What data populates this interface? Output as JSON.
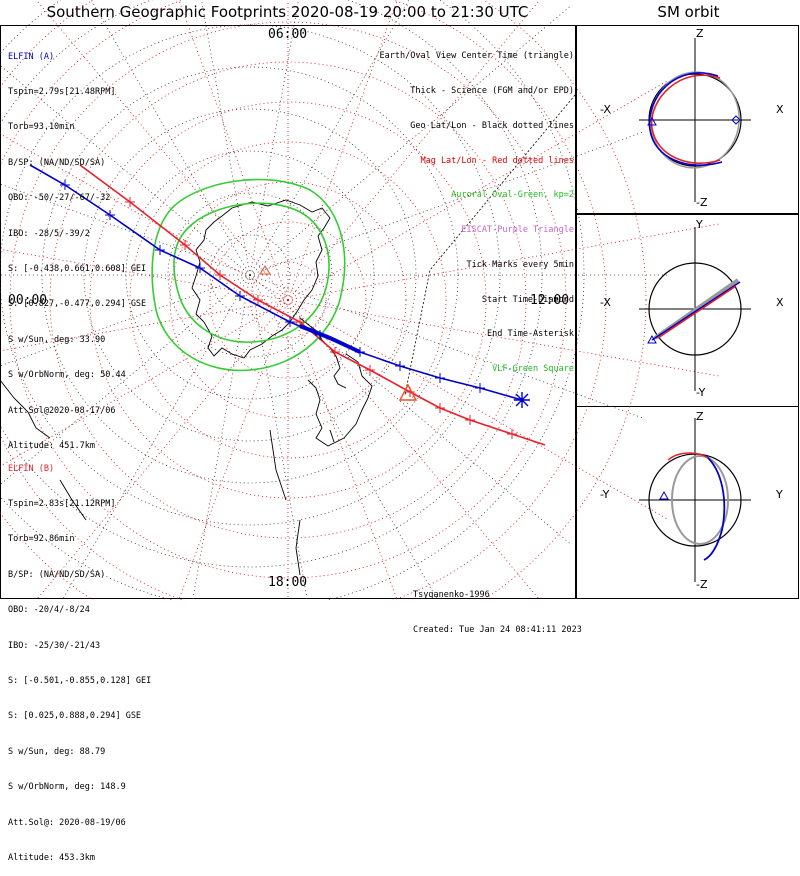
{
  "title": "Southern Geographic Footprints 2020-08-19 20:00 to 21:30 UTC",
  "sm_title": "SM orbit",
  "hour_labels": {
    "top": "06:00",
    "left": "00:00",
    "right": "12:00",
    "bottom": "18:00"
  },
  "elfin_a": {
    "name": "ELFIN (A)",
    "color": "#0000cc",
    "lines": [
      "Tspin=2.79s[21.48RPM]",
      "Torb=93.10min",
      "B/SP: (NA/ND/SD/SA)",
      "OBO: -50/-27/-67/-32",
      "IBO: -28/5/-39/2",
      "S: [-0.438,0.661,0.608] GEI",
      "S: [0.827,-0.477,0.294] GSE",
      "S w/Sun, deg: 33.90",
      "S w/OrbNorm, deg: 50.44",
      "Att.Sol@2020-08-17/06",
      "Altitude: 451.7km"
    ]
  },
  "elfin_b": {
    "name": "ELFIN (B)",
    "color": "#e8202a",
    "lines": [
      "Tspin=2.83s[21.12RPM]",
      "Torb=92.86min",
      "B/SP: (NA/ND/SD/SA)",
      "OBO: -20/4/-8/24",
      "IBO: -25/30/-21/43",
      "S: [-0.501,-0.855,0.128] GEI",
      "S: [0.025,0.888,0.294] GSE",
      "S w/Sun, deg: 88.79",
      "S w/OrbNorm, deg: 148.9",
      "Att.Sol@: 2020-08-19/06",
      "Altitude: 453.3km"
    ]
  },
  "legend": [
    {
      "text": "Earth/Oval View Center Time (triangle)",
      "color": "#000000"
    },
    {
      "text": "Thick - Science (FGM and/or EPD)",
      "color": "#000000"
    },
    {
      "text": "Geo Lat/Lon - Black dotted lines",
      "color": "#000000"
    },
    {
      "text": "Mag Lat/Lon - Red dotted lines",
      "color": "#e00000"
    },
    {
      "text": "Auroral Oval-Green, kp=2",
      "color": "#22bb22"
    },
    {
      "text": "EISCAT-Purple Triangle",
      "color": "#cc66cc"
    },
    {
      "text": "Tick Marks every 5min",
      "color": "#000000"
    },
    {
      "text": "Start Time-Diamond",
      "color": "#000000"
    },
    {
      "text": "End Time-Asterisk",
      "color": "#000000"
    },
    {
      "text": "VLF-Green Square",
      "color": "#22bb22"
    }
  ],
  "credits": {
    "author": "Tsyganenko-1996",
    "created": "Created: Tue Jan 24 08:41:11 2023"
  },
  "sm_panels": [
    {
      "top": "Z",
      "bottom": "-Z",
      "left": "-X",
      "right": "X"
    },
    {
      "top": "Y",
      "bottom": "-Y",
      "left": "-X",
      "right": "X"
    },
    {
      "top": "Z",
      "bottom": "-Z",
      "left": "-Y",
      "right": "Y"
    }
  ]
}
